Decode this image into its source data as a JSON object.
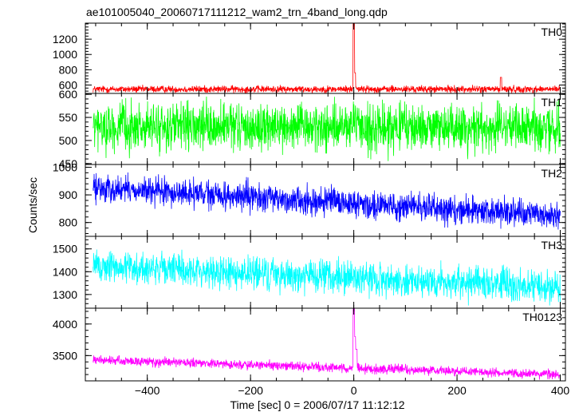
{
  "chart_data": {
    "type": "line",
    "title": "ae101005040_20060717111212_wam2_trn_4band_long.qdp",
    "xlabel": "Time [sec] 0 = 2006/07/17 11:12:12",
    "ylabel": "Counts/sec",
    "xlim": [
      -520,
      410
    ],
    "x_ticks": [
      -400,
      -200,
      0,
      200,
      400
    ],
    "x_tick_labels": [
      "−400",
      "−200",
      "0",
      "200",
      "400"
    ],
    "panels": [
      {
        "name": "TH0",
        "color": "#ff0000",
        "ylim": [
          490,
          1410
        ],
        "y_ticks": [
          600,
          800,
          1000,
          1200
        ],
        "baseline": 545,
        "noise": 35,
        "trend": 0,
        "peaks": [
          {
            "x": 0,
            "y": 1400
          },
          {
            "x": 2,
            "y": 760
          },
          {
            "x": 285,
            "y": 700
          }
        ]
      },
      {
        "name": "TH1",
        "color": "#00ff00",
        "ylim": [
          448,
          602
        ],
        "y_ticks": [
          450,
          500,
          550,
          600
        ],
        "baseline": 528,
        "noise": 38,
        "trend": 0,
        "peaks": []
      },
      {
        "name": "TH2",
        "color": "#0000ff",
        "ylim": [
          750,
          1010
        ],
        "y_ticks": [
          800,
          900,
          1000
        ],
        "baseline": 925,
        "noise": 38,
        "trend": -100,
        "peaks": []
      },
      {
        "name": "TH3",
        "color": "#00ffff",
        "ylim": [
          1240,
          1555
        ],
        "y_ticks": [
          1300,
          1400,
          1500
        ],
        "baseline": 1425,
        "noise": 55,
        "trend": -95,
        "peaks": []
      },
      {
        "name": "TH0123",
        "color": "#ff00ff",
        "ylim": [
          3100,
          4250
        ],
        "y_ticks": [
          3500,
          4000
        ],
        "baseline": 3430,
        "noise": 55,
        "trend": -230,
        "peaks": [
          {
            "x": 0,
            "y": 4240
          },
          {
            "x": 2,
            "y": 3800
          },
          {
            "x": 5,
            "y": 3600
          }
        ]
      }
    ],
    "x_range_data": [
      -505,
      400
    ]
  }
}
